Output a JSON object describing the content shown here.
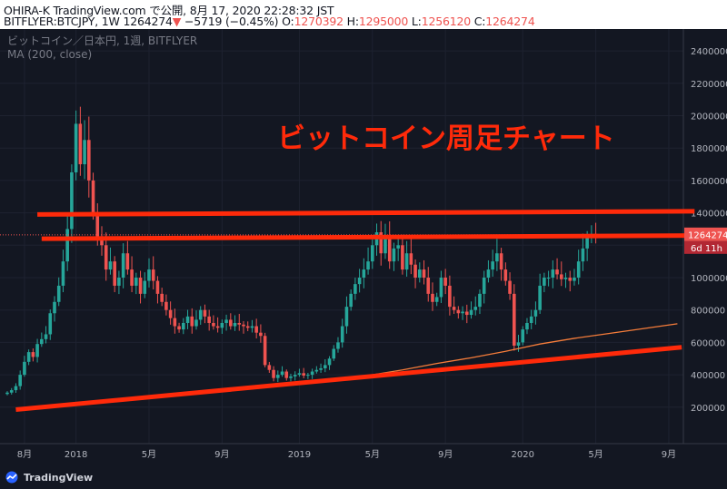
{
  "header": {
    "line1": "OHIRA-K TradingView.com で公開, 8月 17, 2020 22:28:32 JST",
    "symbol": "BITFLYER:BTCJPY, 1W 1264274",
    "arrow": "▼",
    "change": "−5719 (−0.45%)",
    "o_label": "O:",
    "o_value": "1270392",
    "h_label": "H:",
    "h_value": "1295000",
    "l_label": "L:",
    "l_value": "1256120",
    "c_label": "C:",
    "c_value": "1264274"
  },
  "chart_data": {
    "type": "candlestick",
    "legend_line1": "ビットコイン／日本円, 1週, BITFLYER",
    "legend_line2": "MA (200, close)",
    "annotation": "ビットコイン周足チャート",
    "ylim": [
      0,
      2550000
    ],
    "y_ticks": [
      200000,
      400000,
      600000,
      800000,
      1000000,
      1200000,
      1400000,
      1600000,
      1800000,
      2000000,
      2200000,
      2400000
    ],
    "y_tick_labels": [
      "200000",
      "400000",
      "600000",
      "800000",
      "1000000",
      "1200000",
      "1400000",
      "1600000",
      "1800000",
      "2000000",
      "2200000",
      "2400000"
    ],
    "x_tick_labels": [
      "8月",
      "2018",
      "5月",
      "9月",
      "2019",
      "5月",
      "9月",
      "2020",
      "5月",
      "9月"
    ],
    "x_tick_weeks": [
      4,
      16,
      33,
      50,
      68,
      85,
      102,
      120,
      137,
      154
    ],
    "last_price_label": "1264274",
    "countdown_label": "6d 11h",
    "colors": {
      "up": "#26a69a",
      "down": "#ef5350",
      "ma": "#f57c3a",
      "annotation": "#ff2a0a",
      "background": "#131722"
    },
    "close": [
      290000,
      305000,
      330000,
      400000,
      480000,
      540000,
      510000,
      590000,
      620000,
      650000,
      780000,
      850000,
      950000,
      1100000,
      1300000,
      1650000,
      1950000,
      1700000,
      1850000,
      1600000,
      1400000,
      1250000,
      1200000,
      1050000,
      1100000,
      950000,
      1000000,
      1150000,
      1050000,
      950000,
      1000000,
      900000,
      980000,
      1050000,
      980000,
      900000,
      850000,
      800000,
      750000,
      700000,
      680000,
      720000,
      760000,
      700000,
      740000,
      800000,
      760000,
      720000,
      700000,
      690000,
      720000,
      740000,
      700000,
      720000,
      710000,
      700000,
      690000,
      700000,
      660000,
      640000,
      460000,
      430000,
      380000,
      400000,
      420000,
      380000,
      390000,
      400000,
      410000,
      395000,
      400000,
      420000,
      430000,
      440000,
      460000,
      500000,
      560000,
      600000,
      700000,
      820000,
      900000,
      960000,
      1000000,
      1050000,
      1100000,
      1200000,
      1280000,
      1150000,
      1250000,
      1100000,
      1180000,
      1200000,
      1050000,
      1150000,
      1080000,
      1000000,
      1050000,
      1000000,
      900000,
      850000,
      880000,
      1000000,
      950000,
      820000,
      800000,
      780000,
      790000,
      770000,
      800000,
      820000,
      900000,
      1000000,
      1050000,
      1100000,
      1150000,
      1050000,
      980000,
      900000,
      580000,
      600000,
      680000,
      720000,
      760000,
      800000,
      950000,
      1000000,
      1000000,
      1050000,
      1020000,
      990000,
      1000000,
      980000,
      1000000,
      1100000,
      1180000,
      1250000,
      1270000,
      1264274
    ],
    "ma_200": [
      [
        85,
        400000
      ],
      [
        92,
        430000
      ],
      [
        100,
        470000
      ],
      [
        108,
        505000
      ],
      [
        116,
        545000
      ],
      [
        124,
        590000
      ],
      [
        132,
        625000
      ],
      [
        140,
        655000
      ],
      [
        148,
        685000
      ],
      [
        156,
        715000
      ]
    ],
    "trendlines": [
      {
        "from": [
          7,
          1390000
        ],
        "to": [
          160,
          1410000
        ]
      },
      {
        "from": [
          8,
          1240000
        ],
        "to": [
          160,
          1260000
        ]
      },
      {
        "from": [
          2,
          185000
        ],
        "to": [
          157,
          570000
        ]
      }
    ]
  }
}
